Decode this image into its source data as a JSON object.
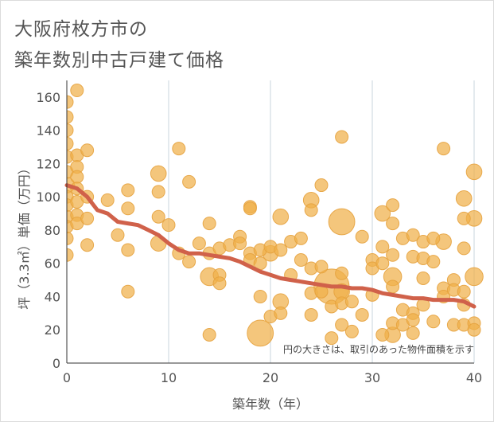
{
  "title": {
    "line1": "大阪府枚方市の",
    "line2": "築年数別中古戸建て価格"
  },
  "colors": {
    "bubble": "#f0b04a",
    "bubble_stroke": "#e5a23e",
    "trend": "#d0614a",
    "grid": "#c9d4de",
    "axis": "#333333"
  },
  "chart_data": {
    "type": "scatter",
    "title": "大阪府枚方市の築年数別中古戸建て価格",
    "xlabel": "築年数（年）",
    "ylabel": "坪（3.3㎡）単価（万円）",
    "xlim": [
      0,
      40
    ],
    "ylim": [
      0,
      170
    ],
    "x_ticks": [
      "0",
      "10",
      "20",
      "30",
      "40"
    ],
    "y_ticks": [
      "0",
      "20",
      "40",
      "60",
      "80",
      "100",
      "120",
      "140",
      "160"
    ],
    "grid": "vertical",
    "note": "円の大きさは、取引のあった物件面積を示す",
    "bubbles": [
      {
        "x": 0,
        "y": 157,
        "s": 2
      },
      {
        "x": 0,
        "y": 148,
        "s": 2
      },
      {
        "x": 0,
        "y": 140,
        "s": 2
      },
      {
        "x": 0,
        "y": 132,
        "s": 2
      },
      {
        "x": 0,
        "y": 124,
        "s": 2
      },
      {
        "x": 0,
        "y": 115,
        "s": 2
      },
      {
        "x": 0,
        "y": 107,
        "s": 3
      },
      {
        "x": 0,
        "y": 100,
        "s": 2
      },
      {
        "x": 0,
        "y": 95,
        "s": 2
      },
      {
        "x": 0,
        "y": 88,
        "s": 2
      },
      {
        "x": 0,
        "y": 82,
        "s": 2
      },
      {
        "x": 0,
        "y": 75,
        "s": 2
      },
      {
        "x": 0,
        "y": 65,
        "s": 2
      },
      {
        "x": 1,
        "y": 164,
        "s": 2
      },
      {
        "x": 1,
        "y": 125,
        "s": 2
      },
      {
        "x": 1,
        "y": 118,
        "s": 2
      },
      {
        "x": 1,
        "y": 112,
        "s": 2
      },
      {
        "x": 1,
        "y": 105,
        "s": 2
      },
      {
        "x": 1,
        "y": 97,
        "s": 2
      },
      {
        "x": 1,
        "y": 89,
        "s": 2
      },
      {
        "x": 1,
        "y": 84,
        "s": 2
      },
      {
        "x": 2,
        "y": 128,
        "s": 2
      },
      {
        "x": 2,
        "y": 100,
        "s": 2
      },
      {
        "x": 2,
        "y": 87,
        "s": 2
      },
      {
        "x": 2,
        "y": 71,
        "s": 2
      },
      {
        "x": 4,
        "y": 98,
        "s": 2
      },
      {
        "x": 5,
        "y": 77,
        "s": 2
      },
      {
        "x": 6,
        "y": 104,
        "s": 2
      },
      {
        "x": 6,
        "y": 93,
        "s": 2
      },
      {
        "x": 6,
        "y": 68,
        "s": 2
      },
      {
        "x": 6,
        "y": 43,
        "s": 2
      },
      {
        "x": 9,
        "y": 114,
        "s": 3
      },
      {
        "x": 9,
        "y": 103,
        "s": 2
      },
      {
        "x": 9,
        "y": 88,
        "s": 2
      },
      {
        "x": 9,
        "y": 72,
        "s": 3
      },
      {
        "x": 10,
        "y": 83,
        "s": 2
      },
      {
        "x": 11,
        "y": 129,
        "s": 2
      },
      {
        "x": 11,
        "y": 66,
        "s": 2
      },
      {
        "x": 12,
        "y": 109,
        "s": 2
      },
      {
        "x": 12,
        "y": 61,
        "s": 2
      },
      {
        "x": 13,
        "y": 72,
        "s": 2
      },
      {
        "x": 14,
        "y": 84,
        "s": 2
      },
      {
        "x": 14,
        "y": 66,
        "s": 2
      },
      {
        "x": 14,
        "y": 52,
        "s": 4
      },
      {
        "x": 14,
        "y": 17,
        "s": 2
      },
      {
        "x": 15,
        "y": 53,
        "s": 2
      },
      {
        "x": 15,
        "y": 48,
        "s": 2
      },
      {
        "x": 15,
        "y": 69,
        "s": 2
      },
      {
        "x": 16,
        "y": 71,
        "s": 2
      },
      {
        "x": 17,
        "y": 76,
        "s": 2
      },
      {
        "x": 17,
        "y": 72,
        "s": 2
      },
      {
        "x": 18,
        "y": 94,
        "s": 2
      },
      {
        "x": 18,
        "y": 93,
        "s": 2
      },
      {
        "x": 18,
        "y": 66,
        "s": 2
      },
      {
        "x": 18,
        "y": 62,
        "s": 2
      },
      {
        "x": 19,
        "y": 68,
        "s": 2
      },
      {
        "x": 19,
        "y": 60,
        "s": 2
      },
      {
        "x": 19,
        "y": 40,
        "s": 2
      },
      {
        "x": 19,
        "y": 18,
        "s": 5
      },
      {
        "x": 20,
        "y": 66,
        "s": 3
      },
      {
        "x": 20,
        "y": 70,
        "s": 2
      },
      {
        "x": 20,
        "y": 28,
        "s": 2
      },
      {
        "x": 21,
        "y": 88,
        "s": 3
      },
      {
        "x": 21,
        "y": 68,
        "s": 2
      },
      {
        "x": 21,
        "y": 37,
        "s": 3
      },
      {
        "x": 21,
        "y": 30,
        "s": 2
      },
      {
        "x": 22,
        "y": 73,
        "s": 2
      },
      {
        "x": 22,
        "y": 53,
        "s": 2
      },
      {
        "x": 23,
        "y": 75,
        "s": 2
      },
      {
        "x": 23,
        "y": 62,
        "s": 2
      },
      {
        "x": 24,
        "y": 98,
        "s": 3
      },
      {
        "x": 24,
        "y": 92,
        "s": 2
      },
      {
        "x": 24,
        "y": 57,
        "s": 2
      },
      {
        "x": 24,
        "y": 42,
        "s": 2
      },
      {
        "x": 24,
        "y": 29,
        "s": 2
      },
      {
        "x": 25,
        "y": 107,
        "s": 2
      },
      {
        "x": 25,
        "y": 58,
        "s": 2
      },
      {
        "x": 25,
        "y": 43,
        "s": 2
      },
      {
        "x": 26,
        "y": 46,
        "s": 9
      },
      {
        "x": 26,
        "y": 34,
        "s": 2
      },
      {
        "x": 26,
        "y": 15,
        "s": 2
      },
      {
        "x": 27,
        "y": 136,
        "s": 2
      },
      {
        "x": 27,
        "y": 85,
        "s": 5
      },
      {
        "x": 27,
        "y": 54,
        "s": 2
      },
      {
        "x": 27,
        "y": 43,
        "s": 3
      },
      {
        "x": 27,
        "y": 36,
        "s": 2
      },
      {
        "x": 27,
        "y": 23,
        "s": 2
      },
      {
        "x": 28,
        "y": 37,
        "s": 2
      },
      {
        "x": 28,
        "y": 19,
        "s": 2
      },
      {
        "x": 29,
        "y": 76,
        "s": 2
      },
      {
        "x": 29,
        "y": 29,
        "s": 2
      },
      {
        "x": 30,
        "y": 62,
        "s": 2
      },
      {
        "x": 30,
        "y": 57,
        "s": 2
      },
      {
        "x": 30,
        "y": 41,
        "s": 2
      },
      {
        "x": 31,
        "y": 90,
        "s": 3
      },
      {
        "x": 31,
        "y": 70,
        "s": 2
      },
      {
        "x": 31,
        "y": 60,
        "s": 2
      },
      {
        "x": 31,
        "y": 17,
        "s": 2
      },
      {
        "x": 32,
        "y": 95,
        "s": 2
      },
      {
        "x": 32,
        "y": 84,
        "s": 2
      },
      {
        "x": 32,
        "y": 65,
        "s": 2
      },
      {
        "x": 32,
        "y": 52,
        "s": 4
      },
      {
        "x": 32,
        "y": 46,
        "s": 2
      },
      {
        "x": 32,
        "y": 24,
        "s": 2
      },
      {
        "x": 32,
        "y": 17,
        "s": 3
      },
      {
        "x": 33,
        "y": 75,
        "s": 2
      },
      {
        "x": 33,
        "y": 32,
        "s": 2
      },
      {
        "x": 33,
        "y": 23,
        "s": 2
      },
      {
        "x": 34,
        "y": 77,
        "s": 2
      },
      {
        "x": 34,
        "y": 64,
        "s": 2
      },
      {
        "x": 34,
        "y": 30,
        "s": 2
      },
      {
        "x": 34,
        "y": 26,
        "s": 2
      },
      {
        "x": 34,
        "y": 18,
        "s": 2
      },
      {
        "x": 35,
        "y": 73,
        "s": 2
      },
      {
        "x": 35,
        "y": 63,
        "s": 2
      },
      {
        "x": 35,
        "y": 51,
        "s": 2
      },
      {
        "x": 35,
        "y": 35,
        "s": 2
      },
      {
        "x": 36,
        "y": 75,
        "s": 2
      },
      {
        "x": 36,
        "y": 61,
        "s": 2
      },
      {
        "x": 36,
        "y": 25,
        "s": 2
      },
      {
        "x": 37,
        "y": 129,
        "s": 2
      },
      {
        "x": 37,
        "y": 73,
        "s": 3
      },
      {
        "x": 37,
        "y": 45,
        "s": 2
      },
      {
        "x": 37,
        "y": 40,
        "s": 2
      },
      {
        "x": 38,
        "y": 50,
        "s": 2
      },
      {
        "x": 38,
        "y": 44,
        "s": 2
      },
      {
        "x": 38,
        "y": 23,
        "s": 2
      },
      {
        "x": 39,
        "y": 99,
        "s": 3
      },
      {
        "x": 39,
        "y": 87,
        "s": 2
      },
      {
        "x": 39,
        "y": 69,
        "s": 2
      },
      {
        "x": 39,
        "y": 43,
        "s": 2
      },
      {
        "x": 39,
        "y": 35,
        "s": 2
      },
      {
        "x": 39,
        "y": 23,
        "s": 2
      },
      {
        "x": 40,
        "y": 115,
        "s": 3
      },
      {
        "x": 40,
        "y": 87,
        "s": 3
      },
      {
        "x": 40,
        "y": 52,
        "s": 4
      },
      {
        "x": 40,
        "y": 24,
        "s": 2
      },
      {
        "x": 40,
        "y": 20,
        "s": 2
      }
    ],
    "trend": {
      "x": [
        0,
        1,
        2,
        3,
        4,
        5,
        6,
        7,
        8,
        9,
        10,
        11,
        12,
        13,
        14,
        15,
        16,
        17,
        18,
        19,
        20,
        21,
        22,
        23,
        24,
        25,
        26,
        27,
        28,
        29,
        30,
        31,
        32,
        33,
        34,
        35,
        36,
        37,
        38,
        39,
        40
      ],
      "y": [
        107,
        105,
        100,
        92,
        90,
        85,
        84,
        83,
        80,
        77,
        72,
        68,
        66,
        66,
        65,
        64,
        63,
        61,
        58,
        55,
        53,
        51,
        50,
        49,
        48,
        47,
        46,
        46,
        45,
        45,
        44,
        42,
        41,
        40,
        39,
        39,
        38,
        38,
        38,
        37,
        34
      ]
    }
  }
}
